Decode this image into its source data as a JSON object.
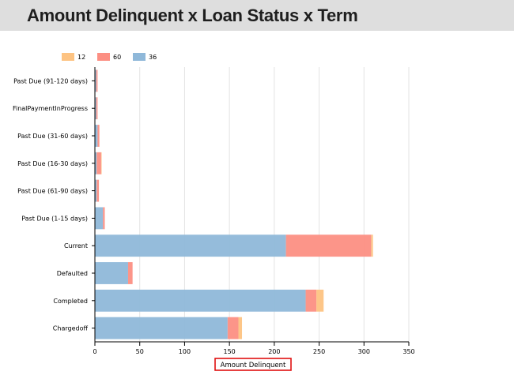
{
  "page": {
    "title": "Amount Delinquent x Loan Status x Term"
  },
  "chart_data": {
    "type": "bar",
    "orientation": "horizontal",
    "stacked": true,
    "categories": [
      "Past Due (91-120 days)",
      "FinalPaymentInProgress",
      "Past Due (31-60 days)",
      "Past Due (16-30 days)",
      "Past Due (61-90 days)",
      "Past Due (1-15 days)",
      "Current",
      "Defaulted",
      "Completed",
      "Chargedoff"
    ],
    "series": [
      {
        "name": "36",
        "color": "#8fb8d9",
        "values": [
          1.5,
          1.5,
          3,
          2,
          2,
          9,
          213,
          37,
          235,
          148
        ]
      },
      {
        "name": "60",
        "color": "#fc8f83",
        "values": [
          1.5,
          1.5,
          2,
          5,
          2.5,
          2,
          95,
          5,
          12,
          12
        ]
      },
      {
        "name": "12",
        "color": "#fdc382",
        "values": [
          0,
          0,
          0,
          0.5,
          0,
          0,
          2,
          0,
          8,
          4
        ]
      }
    ],
    "legend_order": [
      "12",
      "60",
      "36"
    ],
    "legend_position": "top-left",
    "xlabel": "Amount Delinquent",
    "ylabel": "",
    "xlim": [
      0,
      350
    ],
    "xticks": [
      0,
      50,
      100,
      150,
      200,
      250,
      300,
      350
    ],
    "grid": {
      "vertical": true,
      "horizontal": false
    }
  }
}
